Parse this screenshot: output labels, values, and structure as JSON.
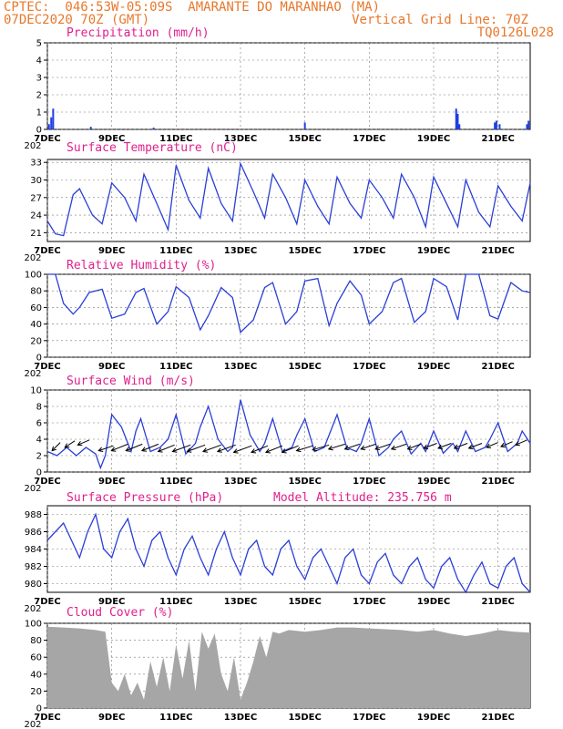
{
  "header": {
    "line1": "CPTEC:  046:53W-05:09S  AMARANTE DO MARANHAO (MA)",
    "line2_left": "07DEC2020 70Z (GMT)",
    "line2_right": "Vertical Grid Line: 70Z",
    "line3_right": "TQ0126L028"
  },
  "colors": {
    "header": "#e8782c",
    "title": "#e0208c",
    "line": "#2a3fd6",
    "bar": "#1f3fe0",
    "cloud": "#a6a6a6",
    "grid": "#000000"
  },
  "x_axis": {
    "labels": [
      "7DEC",
      "9DEC",
      "11DEC",
      "13DEC",
      "15DEC",
      "17DEC",
      "19DEC",
      "21DEC"
    ],
    "label_days": [
      0,
      2,
      4,
      6,
      8,
      10,
      12,
      14
    ],
    "year_fragment": "202",
    "range_days": [
      0,
      15
    ]
  },
  "chart_data": [
    {
      "id": "precip",
      "type": "bar",
      "title": "Precipitation (mm/h)",
      "ylim": [
        0,
        5
      ],
      "yticks": [
        0,
        1,
        2,
        3,
        4,
        5
      ],
      "x_days": [
        0.05,
        0.12,
        0.18,
        1.35,
        3.3,
        8.0,
        12.7,
        12.75,
        12.8,
        13.9,
        13.95,
        14.05,
        14.9,
        14.95
      ],
      "values": [
        0.3,
        0.7,
        1.2,
        0.15,
        0.1,
        0.4,
        1.2,
        0.9,
        0.3,
        0.4,
        0.5,
        0.3,
        0.3,
        0.5
      ]
    },
    {
      "id": "temp",
      "type": "line",
      "title": "Surface Temperature (nC)",
      "ylim": [
        19.5,
        33.5
      ],
      "yticks": [
        21,
        24,
        27,
        30,
        33
      ],
      "x_days": [
        0.0,
        0.25,
        0.5,
        0.8,
        1.0,
        1.4,
        1.7,
        2.0,
        2.4,
        2.75,
        3.0,
        3.4,
        3.75,
        4.0,
        4.4,
        4.75,
        5.0,
        5.4,
        5.75,
        6.0,
        6.4,
        6.75,
        7.0,
        7.4,
        7.75,
        8.0,
        8.4,
        8.75,
        9.0,
        9.4,
        9.75,
        10.0,
        10.4,
        10.75,
        11.0,
        11.4,
        11.75,
        12.0,
        12.4,
        12.75,
        13.0,
        13.4,
        13.75,
        14.0,
        14.4,
        14.75,
        15.0
      ],
      "values": [
        23,
        20.8,
        20.5,
        27.5,
        28.5,
        24,
        22.5,
        29.5,
        27,
        23,
        31,
        26,
        21.5,
        32.5,
        26.5,
        23.5,
        32,
        26,
        23,
        32.8,
        28,
        23.5,
        31,
        27,
        22.5,
        30,
        25.5,
        22.5,
        30.5,
        26,
        23.5,
        30,
        27,
        23.5,
        31,
        27,
        22,
        30.5,
        26,
        22,
        30,
        24.5,
        22,
        29,
        25.5,
        23,
        29.5
      ]
    },
    {
      "id": "rh",
      "type": "line",
      "title": "Relative Humidity (%)",
      "ylim": [
        0,
        100
      ],
      "yticks": [
        0,
        20,
        40,
        60,
        80,
        100
      ],
      "x_days": [
        0.0,
        0.25,
        0.5,
        0.8,
        1.0,
        1.3,
        1.7,
        2.0,
        2.4,
        2.75,
        3.0,
        3.4,
        3.75,
        4.0,
        4.4,
        4.75,
        5.0,
        5.4,
        5.75,
        6.0,
        6.4,
        6.75,
        7.0,
        7.4,
        7.75,
        8.0,
        8.4,
        8.75,
        9.0,
        9.4,
        9.75,
        10.0,
        10.4,
        10.75,
        11.0,
        11.4,
        11.75,
        12.0,
        12.4,
        12.75,
        13.0,
        13.4,
        13.75,
        14.0,
        14.4,
        14.75,
        15.0
      ],
      "values": [
        100,
        100,
        65,
        52,
        60,
        78,
        82,
        47,
        52,
        78,
        83,
        40,
        55,
        85,
        72,
        33,
        50,
        84,
        72,
        30,
        45,
        84,
        90,
        40,
        55,
        92,
        95,
        38,
        65,
        92,
        75,
        40,
        55,
        90,
        95,
        42,
        55,
        95,
        85,
        45,
        100,
        100,
        50,
        46,
        90,
        80,
        78
      ]
    },
    {
      "id": "wind",
      "type": "line",
      "title": "Surface Wind (m/s)",
      "ylim": [
        0,
        10
      ],
      "yticks": [
        0,
        2,
        4,
        6,
        8,
        10
      ],
      "x_days": [
        0.0,
        0.3,
        0.6,
        0.9,
        1.2,
        1.5,
        1.65,
        1.8,
        2.0,
        2.3,
        2.6,
        2.75,
        2.9,
        3.2,
        3.5,
        3.75,
        4.0,
        4.3,
        4.6,
        4.75,
        5.0,
        5.3,
        5.6,
        5.75,
        6.0,
        6.3,
        6.6,
        6.75,
        7.0,
        7.3,
        7.6,
        7.75,
        8.0,
        8.3,
        8.6,
        8.75,
        9.0,
        9.3,
        9.6,
        9.75,
        10.0,
        10.3,
        10.6,
        10.75,
        11.0,
        11.3,
        11.6,
        11.75,
        12.0,
        12.3,
        12.6,
        12.75,
        13.0,
        13.3,
        13.6,
        13.75,
        14.0,
        14.3,
        14.6,
        14.75,
        15.0
      ],
      "values": [
        2.5,
        2,
        3,
        2,
        3,
        2.2,
        0.5,
        2,
        7,
        5.5,
        2.5,
        5,
        6.5,
        2.5,
        3,
        4,
        7,
        2.2,
        3.5,
        5.5,
        8,
        4,
        2.5,
        3,
        8.8,
        4.5,
        2.5,
        3.5,
        6.5,
        2.5,
        3,
        4.5,
        6.5,
        2.5,
        3,
        4.5,
        7,
        3,
        2.5,
        3.5,
        6.5,
        2,
        3,
        4,
        5,
        2.2,
        3.5,
        2.5,
        5,
        2.3,
        3.5,
        2.5,
        5,
        2.5,
        3,
        4,
        6,
        2.5,
        3.5,
        5,
        3.5
      ],
      "vectors": {
        "x_days": [
          0.4,
          0.85,
          1.3,
          2.05,
          2.5,
          2.95,
          3.45,
          3.95,
          4.45,
          4.9,
          5.4,
          5.85,
          6.35,
          6.85,
          7.3,
          7.8,
          8.25,
          8.75,
          9.25,
          9.7,
          10.2,
          10.65,
          11.15,
          11.6,
          12.1,
          12.55,
          13.05,
          13.5,
          14.0,
          14.45,
          14.9
        ],
        "y": [
          3.6,
          3.8,
          3.9,
          3.2,
          3.4,
          3.4,
          3.4,
          3.3,
          3.3,
          3.3,
          3.3,
          3.3,
          3.2,
          3.2,
          3.2,
          3.2,
          3.2,
          3.3,
          3.4,
          3.4,
          3.4,
          3.4,
          3.4,
          3.4,
          3.5,
          3.5,
          3.5,
          3.5,
          3.6,
          3.7,
          3.9
        ],
        "u": [
          -0.5,
          -0.6,
          -0.7,
          -0.9,
          -1.0,
          -1.0,
          -1.0,
          -1.0,
          -1.1,
          -1.1,
          -1.1,
          -1.1,
          -1.1,
          -1.0,
          -1.0,
          -1.0,
          -1.0,
          -1.0,
          -1.0,
          -0.9,
          -0.9,
          -0.9,
          -0.9,
          -0.8,
          -0.8,
          -0.8,
          -0.8,
          -0.8,
          -0.7,
          -0.7,
          -0.7
        ],
        "v": [
          -0.5,
          -0.4,
          -0.3,
          -0.3,
          -0.4,
          -0.4,
          -0.4,
          -0.4,
          -0.4,
          -0.4,
          -0.4,
          -0.4,
          -0.4,
          -0.4,
          -0.4,
          -0.4,
          -0.3,
          -0.3,
          -0.3,
          -0.3,
          -0.3,
          -0.3,
          -0.3,
          -0.3,
          -0.3,
          -0.3,
          -0.3,
          -0.3,
          -0.3,
          -0.3,
          -0.3
        ]
      }
    },
    {
      "id": "pressure",
      "type": "line",
      "title": "Surface Pressure (hPa)",
      "subtitle": "Model Altitude: 235.756 m",
      "ylim": [
        979,
        989
      ],
      "yticks": [
        980,
        982,
        984,
        986,
        988
      ],
      "x_days": [
        0.0,
        0.25,
        0.5,
        0.75,
        1.0,
        1.25,
        1.5,
        1.75,
        2.0,
        2.25,
        2.5,
        2.75,
        3.0,
        3.25,
        3.5,
        3.75,
        4.0,
        4.25,
        4.5,
        4.75,
        5.0,
        5.25,
        5.5,
        5.75,
        6.0,
        6.25,
        6.5,
        6.75,
        7.0,
        7.25,
        7.5,
        7.75,
        8.0,
        8.25,
        8.5,
        8.75,
        9.0,
        9.25,
        9.5,
        9.75,
        10.0,
        10.25,
        10.5,
        10.75,
        11.0,
        11.25,
        11.5,
        11.75,
        12.0,
        12.25,
        12.5,
        12.75,
        13.0,
        13.25,
        13.5,
        13.75,
        14.0,
        14.25,
        14.5,
        14.75,
        15.0
      ],
      "values": [
        985,
        986,
        987,
        985,
        983,
        986,
        988,
        984,
        983,
        986,
        987.5,
        984,
        982,
        985,
        986,
        983,
        981,
        984,
        985.5,
        983,
        981,
        984,
        986,
        983,
        981,
        984,
        985,
        982,
        981,
        984,
        985,
        982,
        980.5,
        983,
        984,
        982,
        980,
        983,
        984,
        981,
        980,
        982.5,
        983.5,
        981,
        980,
        982,
        983,
        980.5,
        979.5,
        982,
        983,
        980.5,
        979,
        981,
        982.5,
        980,
        979.5,
        982,
        983,
        980,
        979
      ]
    },
    {
      "id": "cloud",
      "type": "area",
      "title": "Cloud Cover (%)",
      "ylim": [
        0,
        100
      ],
      "yticks": [
        0,
        20,
        40,
        60,
        80,
        100
      ],
      "x_days": [
        0.0,
        0.5,
        1.0,
        1.5,
        1.8,
        2.0,
        2.2,
        2.4,
        2.6,
        2.8,
        3.0,
        3.2,
        3.4,
        3.6,
        3.8,
        4.0,
        4.2,
        4.4,
        4.6,
        4.8,
        5.0,
        5.2,
        5.4,
        5.6,
        5.8,
        6.0,
        6.2,
        6.4,
        6.6,
        6.8,
        7.0,
        7.2,
        7.5,
        8.0,
        8.5,
        9.0,
        9.5,
        10.0,
        10.5,
        11.0,
        11.5,
        12.0,
        12.5,
        13.0,
        13.5,
        14.0,
        14.5,
        15.0
      ],
      "values": [
        96,
        95,
        94,
        92,
        90,
        30,
        20,
        40,
        15,
        30,
        10,
        55,
        25,
        60,
        20,
        75,
        35,
        80,
        20,
        90,
        70,
        88,
        40,
        20,
        60,
        10,
        30,
        55,
        85,
        60,
        90,
        88,
        92,
        90,
        92,
        95,
        95,
        94,
        93,
        92,
        90,
        92,
        88,
        85,
        88,
        92,
        90,
        89
      ]
    }
  ]
}
